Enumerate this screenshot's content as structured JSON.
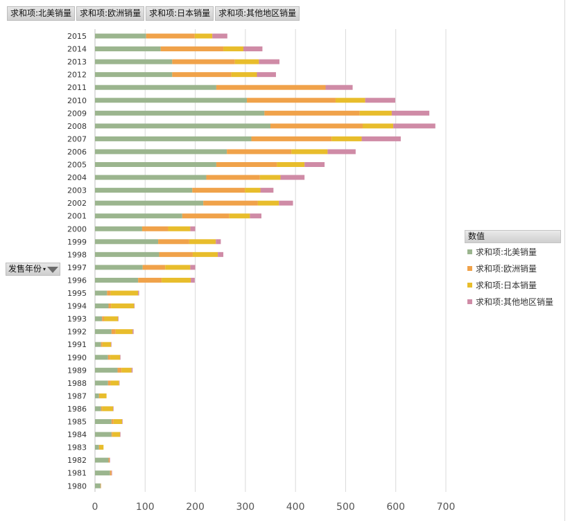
{
  "column_fields": [
    "求和项:北美销量",
    "求和项:欧洲销量",
    "求和项:日本销量",
    "求和项:其他地区销量"
  ],
  "row_field": {
    "label": "发售年份",
    "arrow": "▾",
    "filter_icon": "filter-icon"
  },
  "legend": {
    "title": "数值",
    "items": [
      {
        "name": "求和项:北美销量",
        "color": "#9bb58e"
      },
      {
        "name": "求和项:欧洲销量",
        "color": "#f0a24a"
      },
      {
        "name": "求和项:日本销量",
        "color": "#e8bd2c"
      },
      {
        "name": "求和项:其他地区销量",
        "color": "#cf8ba6"
      }
    ]
  },
  "chart_data": {
    "type": "bar",
    "orientation": "horizontal",
    "stacked": true,
    "categories": [
      "2015",
      "2014",
      "2013",
      "2012",
      "2011",
      "2010",
      "2009",
      "2008",
      "2007",
      "2006",
      "2005",
      "2004",
      "2003",
      "2002",
      "2001",
      "2000",
      "1999",
      "1998",
      "1997",
      "1996",
      "1995",
      "1994",
      "1993",
      "1992",
      "1991",
      "1990",
      "1989",
      "1988",
      "1987",
      "1986",
      "1985",
      "1984",
      "1983",
      "1982",
      "1981",
      "1980"
    ],
    "series": [
      {
        "name": "求和项:北美销量",
        "color": "#9bb58e",
        "values": [
          102,
          131,
          154,
          154,
          242,
          303,
          338,
          350,
          312,
          263,
          242,
          222,
          194,
          216,
          174,
          94,
          126,
          128,
          95,
          86,
          24,
          27,
          14,
          33,
          12,
          26,
          45,
          26,
          8,
          12,
          33,
          33,
          8,
          27,
          30,
          11
        ]
      },
      {
        "name": "求和项:欧洲销量",
        "color": "#f0a24a",
        "values": [
          97,
          125,
          125,
          118,
          218,
          177,
          190,
          184,
          160,
          129,
          121,
          107,
          105,
          109,
          94,
          52,
          62,
          67,
          45,
          47,
          7,
          5,
          4,
          8,
          3,
          4,
          8,
          5,
          1,
          2,
          4,
          2,
          1,
          2,
          3,
          1
        ]
      },
      {
        "name": "求和项:日本销量",
        "color": "#e8bd2c",
        "values": [
          35,
          40,
          48,
          51,
          0,
          59,
          64,
          61,
          60,
          72,
          55,
          41,
          31,
          42,
          41,
          44,
          53,
          50,
          50,
          58,
          55,
          46,
          28,
          34,
          17,
          20,
          20,
          17,
          14,
          22,
          17,
          15,
          8,
          0,
          0,
          0
        ]
      },
      {
        "name": "求和项:其他地区销量",
        "color": "#cf8ba6",
        "values": [
          30,
          38,
          41,
          38,
          54,
          60,
          75,
          84,
          78,
          56,
          40,
          48,
          26,
          28,
          23,
          10,
          10,
          11,
          10,
          8,
          2,
          1,
          1,
          2,
          1,
          1,
          2,
          1,
          0,
          1,
          1,
          1,
          0,
          1,
          1,
          0
        ]
      }
    ],
    "xlim": [
      0,
      700
    ],
    "xticks": [
      0,
      100,
      200,
      300,
      400,
      500,
      600,
      700
    ],
    "grid": "vertical",
    "legend_position": "right"
  }
}
